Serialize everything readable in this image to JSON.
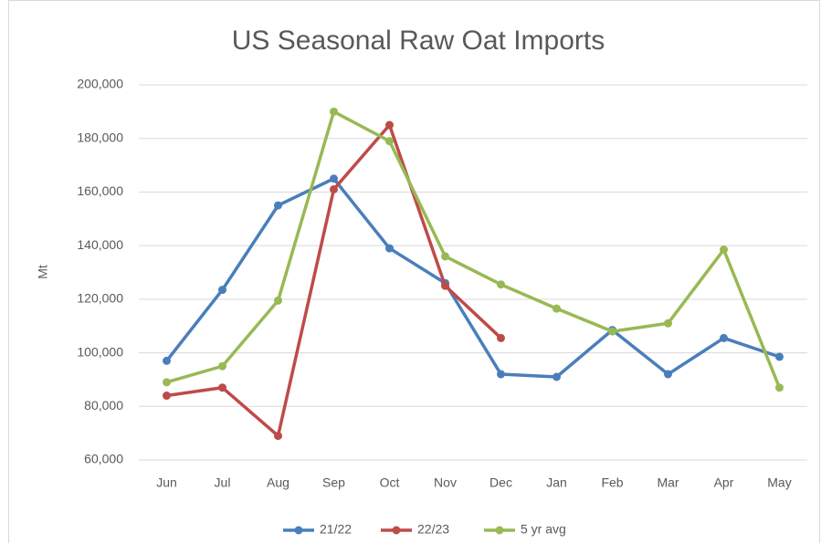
{
  "chart_data": {
    "type": "line",
    "title": "US Seasonal Raw Oat Imports",
    "y_label": "Mt",
    "categories": [
      "Jun",
      "Jul",
      "Aug",
      "Sep",
      "Oct",
      "Nov",
      "Dec",
      "Jan",
      "Feb",
      "Mar",
      "Apr",
      "May"
    ],
    "series": [
      {
        "name": "21/22",
        "color": "#4a7ebb",
        "values": [
          97000,
          123500,
          155000,
          165000,
          139000,
          126000,
          92000,
          91000,
          108500,
          92000,
          105500,
          98500
        ]
      },
      {
        "name": "22/23",
        "color": "#be4b48",
        "values": [
          84000,
          87000,
          69000,
          161000,
          185000,
          125000,
          105500,
          null,
          null,
          null,
          null,
          null
        ]
      },
      {
        "name": "5 yr avg",
        "color": "#98b954",
        "values": [
          89000,
          95000,
          119500,
          190000,
          179000,
          136000,
          125500,
          116500,
          108000,
          111000,
          138500,
          87000
        ]
      }
    ],
    "ylim": [
      60000,
      200000
    ],
    "yticks": [
      {
        "value": 60000,
        "label": "60,000"
      },
      {
        "value": 80000,
        "label": "80,000"
      },
      {
        "value": 100000,
        "label": "100,000"
      },
      {
        "value": 120000,
        "label": "120,000"
      },
      {
        "value": 140000,
        "label": "140,000"
      },
      {
        "value": 160000,
        "label": "160,000"
      },
      {
        "value": 180000,
        "label": "180,000"
      },
      {
        "value": 200000,
        "label": "200,000"
      }
    ],
    "grid": true,
    "legend": "bottom"
  }
}
